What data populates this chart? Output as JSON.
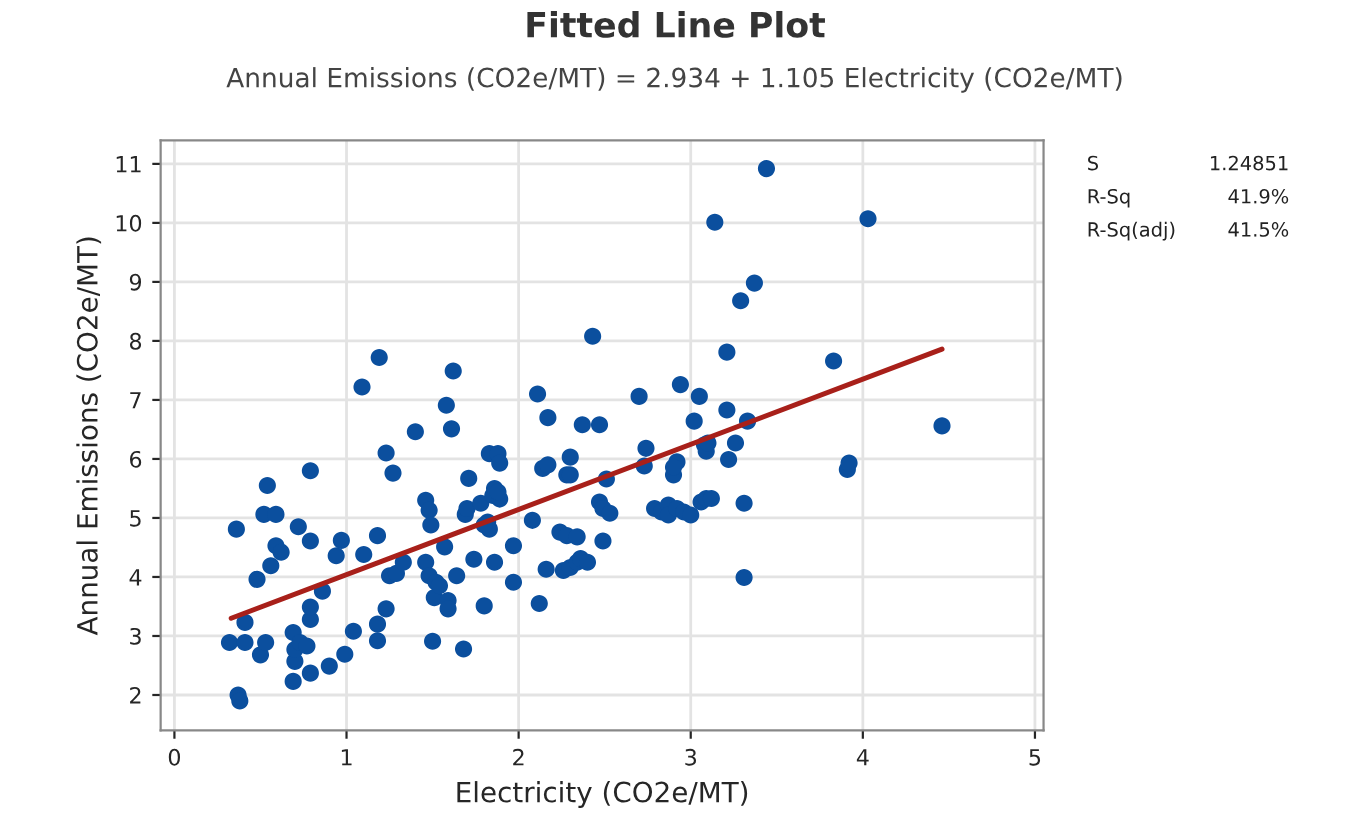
{
  "chart_data": {
    "type": "scatter",
    "title": "Fitted Line Plot",
    "subtitle": "Annual Emissions (CO2e/MT) = 2.934 + 1.105 Electricity (CO2e/MT)",
    "xlabel": "Electricity (CO2e/MT)",
    "ylabel": "Annual Emissions (CO2e/MT)",
    "xlim": [
      -0.08,
      5.05
    ],
    "ylim": [
      1.4,
      11.4
    ],
    "xticks": [
      0,
      1,
      2,
      3,
      4,
      5
    ],
    "yticks": [
      2,
      3,
      4,
      5,
      6,
      7,
      8,
      9,
      10,
      11
    ],
    "grid": true,
    "annotations": [
      "S",
      "1.24851",
      "R-Sq",
      "41.9%",
      "R-Sq(adj)",
      "41.5%"
    ],
    "series": [
      {
        "color": "#0b4f9e",
        "marker": "circle",
        "x": [
          0.36,
          0.32,
          0.41,
          0.41,
          0.37,
          0.38,
          0.5,
          0.48,
          0.53,
          0.54,
          0.52,
          0.59,
          0.56,
          0.59,
          0.62,
          0.69,
          0.69,
          0.7,
          0.7,
          0.73,
          0.72,
          0.77,
          0.79,
          0.79,
          0.79,
          0.79,
          0.79,
          0.86,
          0.9,
          0.94,
          0.97,
          0.99,
          1.04,
          1.09,
          1.1,
          1.18,
          1.18,
          1.18,
          1.19,
          1.23,
          1.23,
          1.25,
          1.27,
          1.29,
          1.33,
          1.4,
          1.46,
          1.46,
          1.48,
          1.49,
          1.48,
          1.51,
          1.5,
          1.52,
          1.54,
          1.57,
          1.58,
          1.59,
          1.59,
          1.61,
          1.62,
          1.64,
          1.68,
          1.69,
          1.7,
          1.71,
          1.74,
          1.78,
          1.8,
          1.82,
          1.83,
          1.83,
          1.85,
          1.86,
          1.86,
          1.88,
          1.89,
          1.89,
          1.88,
          1.8,
          1.97,
          1.97,
          2.08,
          2.11,
          2.12,
          2.14,
          2.17,
          2.17,
          2.16,
          2.3,
          2.28,
          2.3,
          2.24,
          2.28,
          2.34,
          2.26,
          2.3,
          2.34,
          2.36,
          2.4,
          2.37,
          2.47,
          2.43,
          2.51,
          2.47,
          2.49,
          2.53,
          2.49,
          2.7,
          2.74,
          2.73,
          2.79,
          2.83,
          2.87,
          2.87,
          2.92,
          2.96,
          3.0,
          2.9,
          2.92,
          2.9,
          2.94,
          3.02,
          3.05,
          3.08,
          3.09,
          3.1,
          3.06,
          3.09,
          3.12,
          3.14,
          3.21,
          3.21,
          3.22,
          3.26,
          3.29,
          3.31,
          3.31,
          3.33,
          3.37,
          3.44,
          3.83,
          3.91,
          3.92,
          4.03,
          4.46
        ],
        "values": [
          4.81,
          2.89,
          2.89,
          3.23,
          2.0,
          1.9,
          2.68,
          3.96,
          2.89,
          5.55,
          5.06,
          5.06,
          4.19,
          4.53,
          4.42,
          3.06,
          2.23,
          2.57,
          2.77,
          2.89,
          4.85,
          2.83,
          3.28,
          3.49,
          4.61,
          5.8,
          2.37,
          3.76,
          2.49,
          4.36,
          4.62,
          2.69,
          3.08,
          7.22,
          4.38,
          4.7,
          3.2,
          2.92,
          7.72,
          6.1,
          3.46,
          4.02,
          5.76,
          4.06,
          4.25,
          6.46,
          5.3,
          4.25,
          5.13,
          4.88,
          4.02,
          3.65,
          2.91,
          3.91,
          3.85,
          4.51,
          6.91,
          3.6,
          3.46,
          6.51,
          7.49,
          4.02,
          2.78,
          5.06,
          5.16,
          5.67,
          4.3,
          5.25,
          3.51,
          4.93,
          6.09,
          4.81,
          5.38,
          5.5,
          4.25,
          6.09,
          5.93,
          5.32,
          5.44,
          4.88,
          4.53,
          3.91,
          4.96,
          7.1,
          3.55,
          5.84,
          5.9,
          6.7,
          4.13,
          6.03,
          5.73,
          5.73,
          4.76,
          4.7,
          4.68,
          4.11,
          4.16,
          4.25,
          4.31,
          4.25,
          6.58,
          6.58,
          8.08,
          5.66,
          5.27,
          5.16,
          5.08,
          4.61,
          7.06,
          6.18,
          5.88,
          5.16,
          5.1,
          5.22,
          5.05,
          5.16,
          5.1,
          5.05,
          5.73,
          5.95,
          5.86,
          7.26,
          6.64,
          7.06,
          6.24,
          6.13,
          6.27,
          5.27,
          5.33,
          5.33,
          10.01,
          7.81,
          6.83,
          5.99,
          6.27,
          8.68,
          5.25,
          3.99,
          6.64,
          8.98,
          10.92,
          7.66,
          5.82,
          5.93,
          10.07,
          6.56
        ]
      },
      {
        "type": "line",
        "color": "#a8201a",
        "x": [
          0.33,
          4.46
        ],
        "values": [
          3.3,
          7.86
        ],
        "line_style": "solid",
        "marker": "none"
      }
    ]
  }
}
